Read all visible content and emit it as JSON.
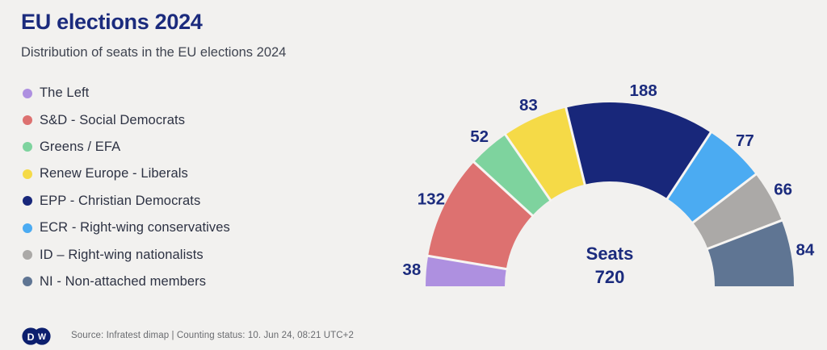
{
  "page": {
    "background": "#f2f1ef",
    "accent_navy": "#1b2b7d"
  },
  "header": {
    "title": "EU elections 2024",
    "subtitle": "Distribution of seats in the EU elections 2024"
  },
  "chart_data": {
    "type": "pie",
    "variant": "half-donut",
    "title": "EU elections 2024",
    "center_label": "Seats",
    "center_value": "720",
    "total": 720,
    "legend_position": "left",
    "value_label_color": "#1b2b7d",
    "separator_color": "#f7f5f2",
    "series": [
      {
        "label": "The Left",
        "value": 38,
        "color": "#ae90e0"
      },
      {
        "label": "S&D - Social Democrats",
        "value": 132,
        "color": "#dd7170"
      },
      {
        "label": "Greens / EFA",
        "value": 52,
        "color": "#7ed39e"
      },
      {
        "label": "Renew Europe - Liberals",
        "value": 83,
        "color": "#f5da47"
      },
      {
        "label": "EPP - Christian Democrats",
        "value": 188,
        "color": "#18277a"
      },
      {
        "label": "ECR - Right-wing conservatives",
        "value": 77,
        "color": "#4babf2"
      },
      {
        "label": "ID – Right-wing nationalists",
        "value": 66,
        "color": "#aba9a7"
      },
      {
        "label": "NI - Non-attached members",
        "value": 84,
        "color": "#5f7593"
      }
    ]
  },
  "footer": {
    "logo": "DW",
    "logo_d": "D",
    "logo_w": "W",
    "logo_color": "#0c1f6e",
    "source": "Source: Infratest dimap | Counting status: 10. Jun 24, 08:21 UTC+2"
  }
}
